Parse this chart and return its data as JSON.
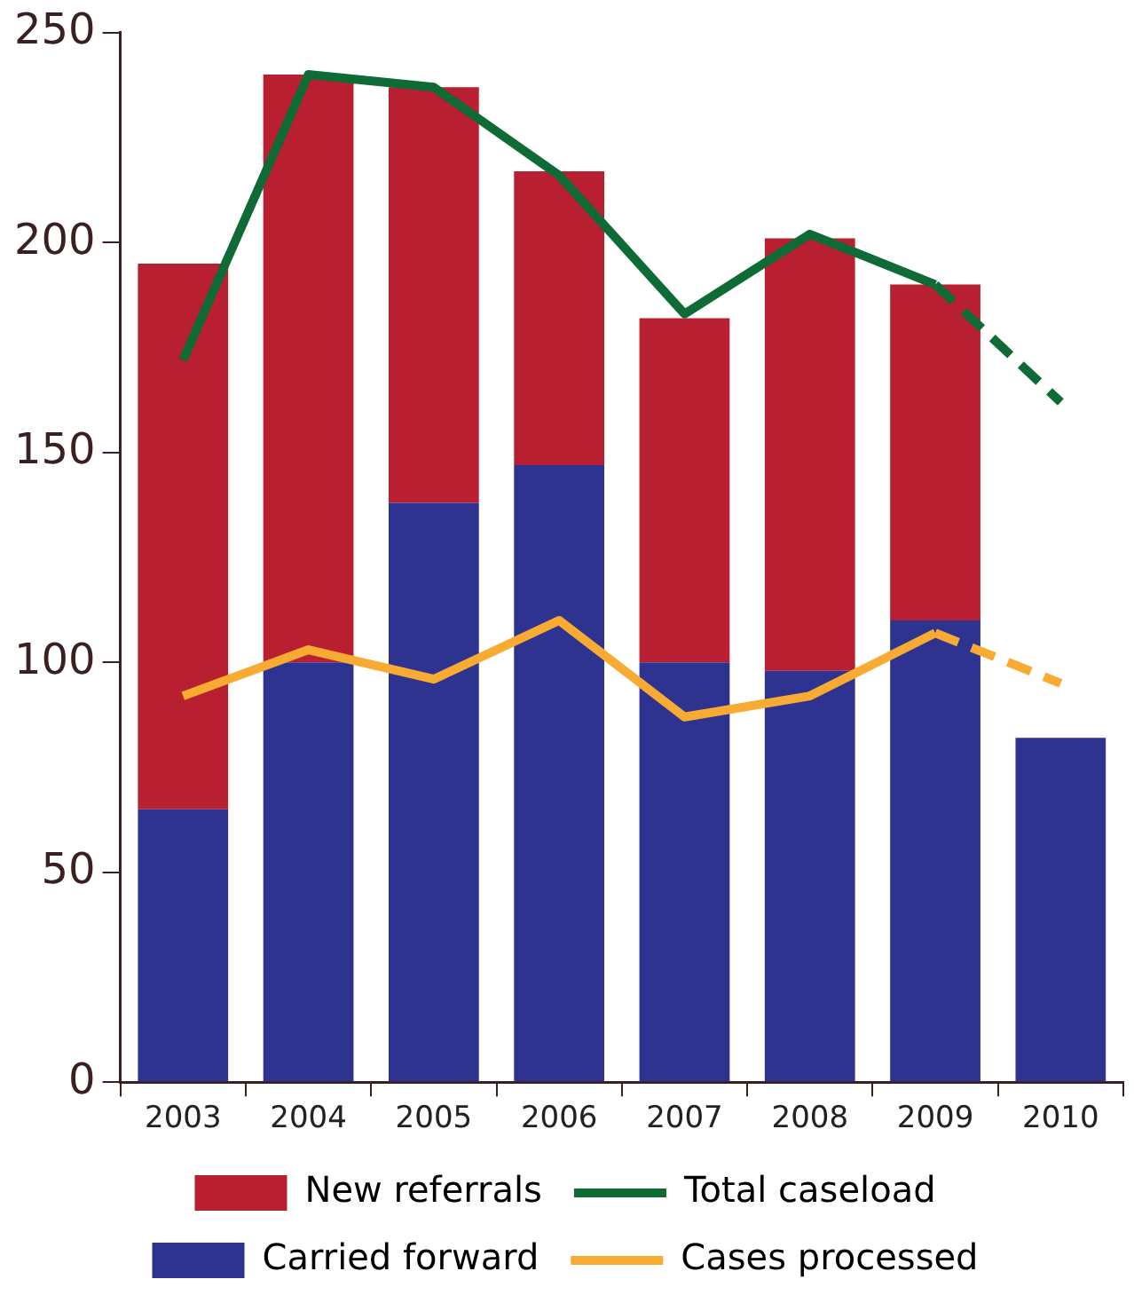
{
  "chart_data": {
    "type": "bar",
    "stacked": true,
    "categories": [
      "2003",
      "2004",
      "2005",
      "2006",
      "2007",
      "2008",
      "2009",
      "2010"
    ],
    "series": [
      {
        "name": "Carried forward",
        "color": "#2e338f",
        "values": [
          65,
          100,
          138,
          147,
          100,
          98,
          110,
          82
        ]
      },
      {
        "name": "New referrals",
        "color": "#b81f31",
        "values": [
          130,
          140,
          99,
          70,
          82,
          103,
          80,
          null
        ]
      },
      {
        "name": "Total caseload",
        "type": "line",
        "color": "#0e6b36",
        "line_style": "solid",
        "values": [
          172,
          240,
          237,
          216,
          183,
          202,
          190,
          null
        ]
      },
      {
        "type": "line",
        "color": "#0e6b36",
        "line_style": "dashed",
        "values": [
          null,
          null,
          null,
          null,
          null,
          null,
          190,
          162
        ]
      },
      {
        "name": "Cases processed",
        "type": "line",
        "color": "#f8ab33",
        "line_style": "solid",
        "values": [
          92,
          103,
          96,
          110,
          87,
          92,
          107,
          null
        ]
      },
      {
        "type": "line",
        "color": "#f8ab33",
        "line_style": "dashed",
        "values": [
          null,
          null,
          null,
          null,
          null,
          null,
          107,
          95
        ]
      }
    ],
    "ylim": [
      0,
      250
    ],
    "yticks": [
      0,
      50,
      100,
      150,
      200,
      250
    ],
    "grid": false,
    "legend": "bottom",
    "marker": "none"
  }
}
